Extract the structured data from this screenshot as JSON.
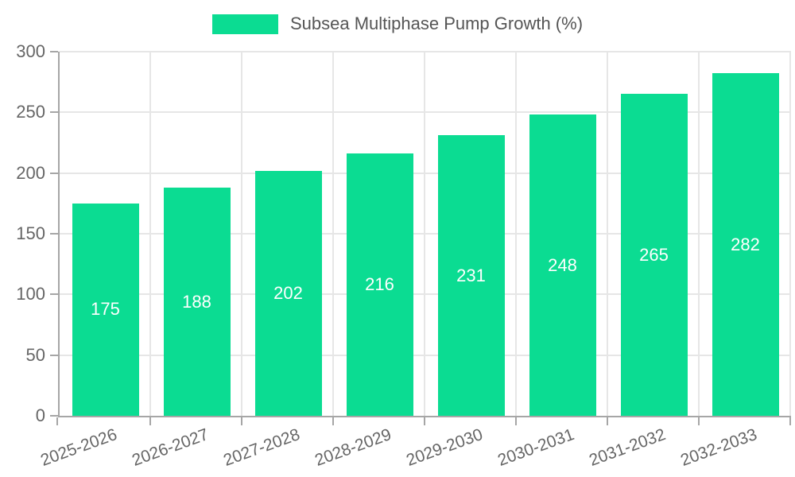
{
  "chart_data": {
    "type": "bar",
    "title": "",
    "legend_label": "Subsea Multiphase Pump Growth (%)",
    "legend_position": "top-center",
    "categories": [
      "2025-2026",
      "2026-2027",
      "2027-2028",
      "2028-2029",
      "2029-2030",
      "2030-2031",
      "2031-2032",
      "2032-2033"
    ],
    "values": [
      175,
      188,
      202,
      216,
      231,
      248,
      265,
      282
    ],
    "xlabel": "",
    "ylabel": "",
    "ylim": [
      0,
      300
    ],
    "yticks": [
      0,
      50,
      100,
      150,
      200,
      250,
      300
    ],
    "grid": true,
    "colors": {
      "bar": "#0BDC92",
      "axis": "#A6A6A6",
      "gridline": "#E6E6E6",
      "tick_label": "#666666",
      "legend_text": "#555555",
      "value_label": "#FFFFFF",
      "background": "#FFFFFF"
    }
  }
}
